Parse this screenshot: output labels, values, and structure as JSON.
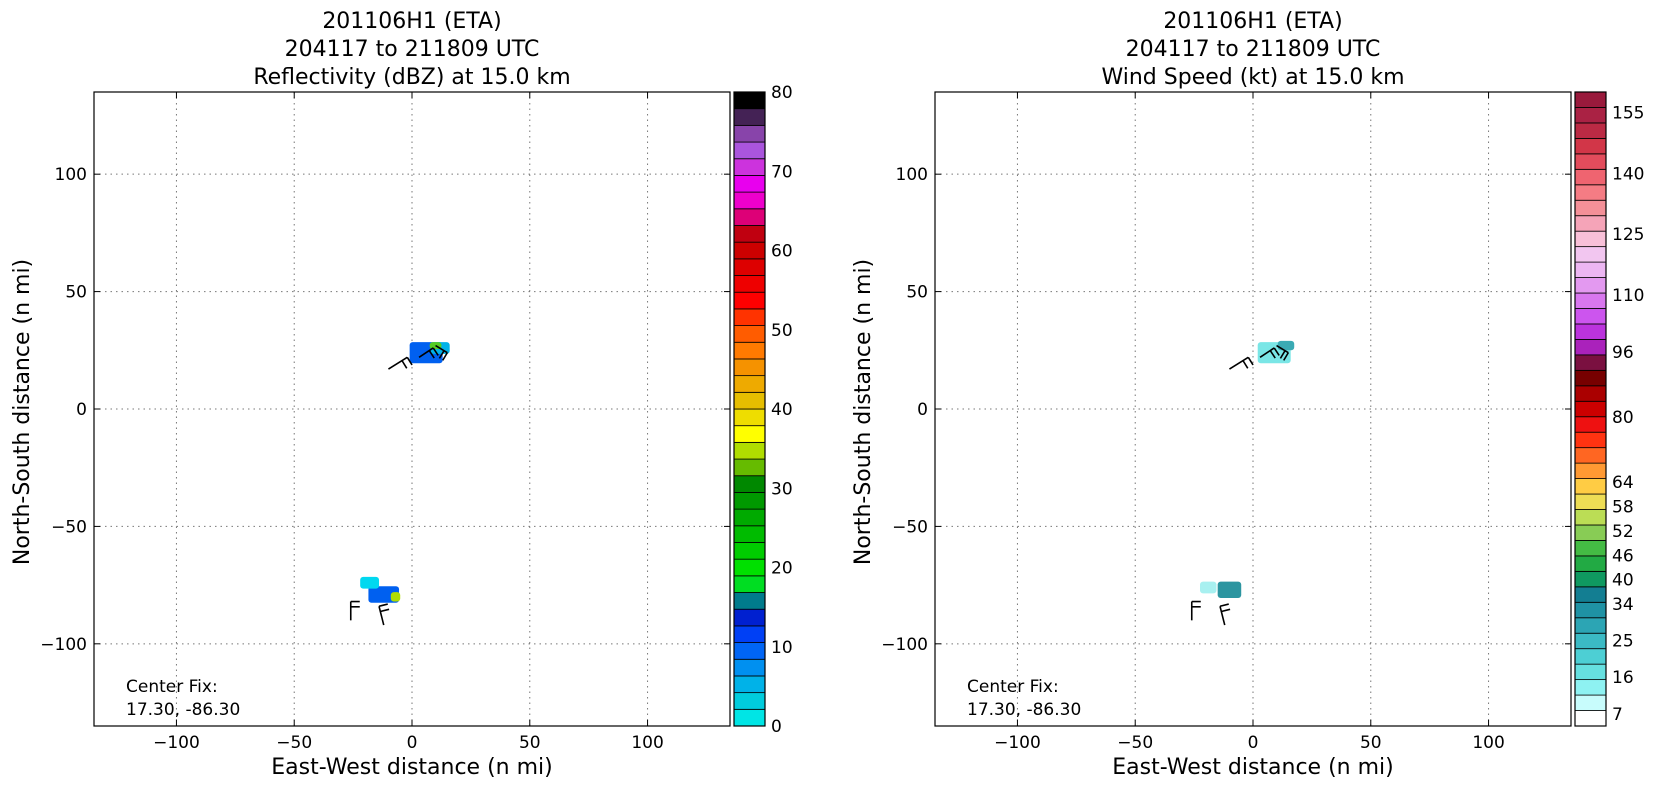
{
  "chart_data": [
    {
      "type": "heatmap",
      "title_lines": [
        "201106H1 (ETA)",
        "204117 to 211809 UTC",
        "Reflectivity (dBZ) at 15.0 km"
      ],
      "xlabel": "East-West distance (n mi)",
      "ylabel": "North-South distance (n mi)",
      "xlim": [
        -135,
        135
      ],
      "ylim": [
        -135,
        135
      ],
      "xticks": [
        -100,
        -50,
        0,
        50,
        100
      ],
      "yticks": [
        -100,
        -50,
        0,
        50,
        100
      ],
      "xtick_labels": [
        "−100",
        "−50",
        "0",
        "50",
        "100"
      ],
      "ytick_labels": [
        "−100",
        "−50",
        "0",
        "50",
        "100"
      ],
      "grid": true,
      "annotation_lines": [
        "Center Fix:",
        "17.30, -86.30"
      ],
      "colorbar": {
        "range": [
          0,
          80
        ],
        "ticks": [
          0,
          10,
          20,
          30,
          40,
          50,
          60,
          70,
          80
        ],
        "tick_labels": [
          "0",
          "10",
          "20",
          "30",
          "40",
          "50",
          "60",
          "70",
          "80"
        ],
        "colors": [
          "#00e5e5",
          "#00ccdd",
          "#00b2e8",
          "#0090f0",
          "#0065f5",
          "#0040f5",
          "#0020d0",
          "#007b8c",
          "#00dd22",
          "#00e000",
          "#00cc00",
          "#00bb00",
          "#00aa00",
          "#009900",
          "#008800",
          "#66bb00",
          "#b0dd00",
          "#ffff00",
          "#eedd00",
          "#e6be00",
          "#eeaa00",
          "#f59200",
          "#ff7a00",
          "#ff5c00",
          "#ff3300",
          "#ff0000",
          "#ee0000",
          "#dd0000",
          "#cc0000",
          "#c00010",
          "#dd0077",
          "#ee00cc",
          "#e800ee",
          "#cc33dd",
          "#aa55dd",
          "#8844aa",
          "#442255",
          "#000000"
        ]
      },
      "echoes": [
        {
          "x": 6,
          "y": 24,
          "w": 14,
          "h": 9,
          "fill": "#0060f0"
        },
        {
          "x": 12,
          "y": 26,
          "w": 8,
          "h": 5,
          "fill": "#00b2e8"
        },
        {
          "x": 10,
          "y": 27,
          "w": 5,
          "h": 3,
          "fill": "#55cc22"
        },
        {
          "x": -12,
          "y": -79,
          "w": 13,
          "h": 7,
          "fill": "#0060f0"
        },
        {
          "x": -18,
          "y": -74,
          "w": 8,
          "h": 5,
          "fill": "#00d8f0"
        },
        {
          "x": -7,
          "y": -80,
          "w": 4,
          "h": 4,
          "fill": "#b0dd00"
        }
      ],
      "barbs": [
        {
          "x": -10,
          "y": 17,
          "u": 8,
          "v": 5
        },
        {
          "x": 3,
          "y": 22,
          "u": 6,
          "v": 4
        },
        {
          "x": 10,
          "y": 27,
          "u": 5,
          "v": -3
        },
        {
          "x": -26,
          "y": -90,
          "u": 0,
          "v": 8
        },
        {
          "x": -12,
          "y": -92,
          "u": -2,
          "v": 8
        }
      ]
    },
    {
      "type": "heatmap",
      "title_lines": [
        "201106H1 (ETA)",
        "204117 to 211809 UTC",
        "Wind Speed (kt) at 15.0 km"
      ],
      "xlabel": "East-West distance (n mi)",
      "ylabel": "North-South distance (n mi)",
      "xlim": [
        -135,
        135
      ],
      "ylim": [
        -135,
        135
      ],
      "xticks": [
        -100,
        -50,
        0,
        50,
        100
      ],
      "yticks": [
        -100,
        -50,
        0,
        50,
        100
      ],
      "xtick_labels": [
        "−100",
        "−50",
        "0",
        "50",
        "100"
      ],
      "ytick_labels": [
        "−100",
        "−50",
        "0",
        "50",
        "100"
      ],
      "grid": true,
      "annotation_lines": [
        "Center Fix:",
        "17.30, -86.30"
      ],
      "colorbar": {
        "range": [
          4,
          160
        ],
        "ticks": [
          7,
          16,
          25,
          34,
          40,
          46,
          52,
          58,
          64,
          80,
          96,
          110,
          125,
          140,
          155
        ],
        "tick_labels": [
          "7",
          "16",
          "25",
          "34",
          "40",
          "46",
          "52",
          "58",
          "64",
          "80",
          "96",
          "110",
          "125",
          "140",
          "155"
        ],
        "colors": [
          "#ffffff",
          "#c8fcfc",
          "#8ef2f2",
          "#66e0e0",
          "#4dcfd4",
          "#3bbac4",
          "#2ca5b4",
          "#1f92a4",
          "#137e92",
          "#0f9960",
          "#22aa44",
          "#44bb44",
          "#88cc55",
          "#bbdd55",
          "#eedd55",
          "#ffcc44",
          "#ff9933",
          "#ff6622",
          "#ff3311",
          "#ee1111",
          "#cc0000",
          "#aa0000",
          "#770000",
          "#7a1040",
          "#aa22bb",
          "#bb33dd",
          "#cc55ee",
          "#d877ee",
          "#e399f0",
          "#ecb6f2",
          "#f2c6f0",
          "#f8c0d8",
          "#f5a4b8",
          "#f49098",
          "#f57c84",
          "#ef6470",
          "#e34c5c",
          "#d23648",
          "#bb2a44",
          "#aa2244",
          "#991a3c"
        ]
      },
      "echoes": [
        {
          "x": 9,
          "y": 24,
          "w": 14,
          "h": 9,
          "fill": "#7ae6e6"
        },
        {
          "x": 14,
          "y": 27,
          "w": 7,
          "h": 4,
          "fill": "#3aaab4"
        },
        {
          "x": -10,
          "y": -77,
          "w": 10,
          "h": 7,
          "fill": "#2c95a0"
        },
        {
          "x": -19,
          "y": -76,
          "w": 7,
          "h": 5,
          "fill": "#a8f0f0"
        }
      ],
      "barbs": [
        {
          "x": -10,
          "y": 17,
          "u": 8,
          "v": 5
        },
        {
          "x": 3,
          "y": 22,
          "u": 6,
          "v": 4
        },
        {
          "x": 10,
          "y": 27,
          "u": 5,
          "v": -3
        },
        {
          "x": -26,
          "y": -90,
          "u": 0,
          "v": 8
        },
        {
          "x": -12,
          "y": -92,
          "u": -2,
          "v": 8
        }
      ]
    }
  ]
}
